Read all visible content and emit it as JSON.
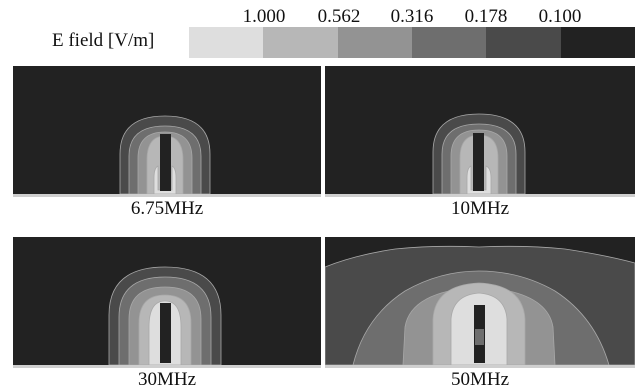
{
  "legend": {
    "title": "E field [V/m]",
    "ticks": [
      "1.000",
      "0.562",
      "0.316",
      "0.178",
      "0.100"
    ],
    "colors": [
      "#dedede",
      "#b7b7b7",
      "#939393",
      "#6e6e6e",
      "#4a4a4a",
      "#222222"
    ]
  },
  "panels": [
    {
      "label": "6.75MHz"
    },
    {
      "label": "10MHz"
    },
    {
      "label": "30MHz"
    },
    {
      "label": "50MHz"
    }
  ],
  "colors": {
    "background": "#222222",
    "contour_line": "#a8a8a8",
    "ground": "#cfcfcf"
  }
}
